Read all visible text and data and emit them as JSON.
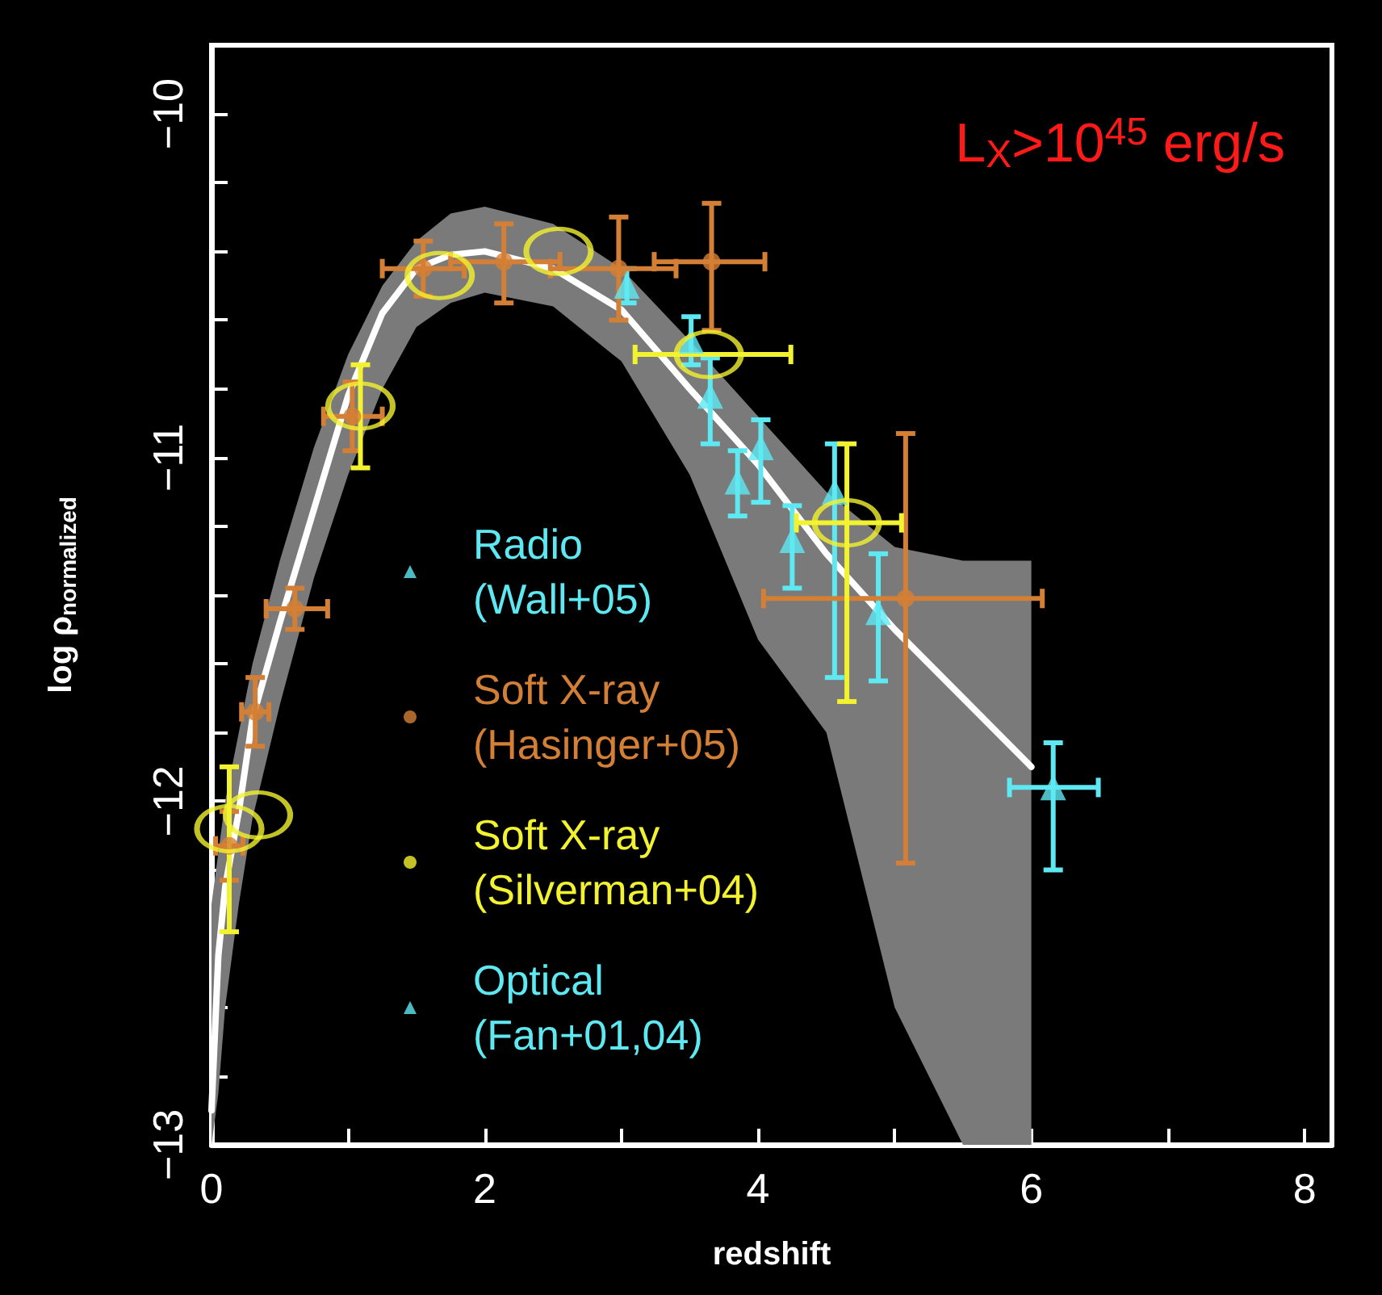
{
  "chart_data": {
    "type": "scatter",
    "ylabel": "log ρ$_{normalized}$",
    "xlabel": "redshift",
    "annotations": [
      "L$_{X}$>10$^{45}$ erg/s"
    ],
    "xlim": [
      0,
      8.2
    ],
    "xticks": [
      0,
      {
        "value": 1,
        "label": null
      },
      2,
      {
        "value": 3,
        "label": null
      },
      4,
      {
        "value": 5,
        "label": null
      },
      6,
      {
        "value": 7,
        "label": null
      },
      8
    ],
    "ylim": [
      -13,
      -9.8
    ],
    "yticks": [
      -13,
      {
        "value": -12.8,
        "label": null
      },
      {
        "value": -12.6,
        "label": null
      },
      {
        "value": -12.4,
        "label": null
      },
      {
        "value": -12.2,
        "label": null
      },
      -12,
      {
        "value": -11.8,
        "label": null
      },
      {
        "value": -11.6,
        "label": null
      },
      {
        "value": -11.4,
        "label": null
      },
      {
        "value": -11.2,
        "label": null
      },
      -11,
      {
        "value": -10.8,
        "label": null
      },
      {
        "value": -10.6,
        "label": null
      },
      {
        "value": -10.4,
        "label": null
      },
      {
        "value": -10.2,
        "label": null
      },
      -10
    ],
    "grid": false,
    "legend": "left",
    "series": [
      {
        "type": "line",
        "color": "#ffffff",
        "marker": "none",
        "line_style": "solid",
        "x": [
          0,
          0.05,
          0.1,
          0.2,
          0.3,
          0.5,
          0.75,
          1,
          1.25,
          1.5,
          1.75,
          2,
          2.5,
          3,
          3.5,
          4,
          4.5,
          5,
          5.5,
          6
        ],
        "values": [
          -12.9,
          -12.45,
          -12.25,
          -12.03,
          -11.76,
          -11.48,
          -11.15,
          -10.82,
          -10.58,
          -10.45,
          -10.41,
          -10.4,
          -10.45,
          -10.57,
          -10.8,
          -11.02,
          -11.28,
          -11.5,
          -11.7,
          -11.9
        ],
        "upper": [
          -12.3,
          -12.15,
          -12.0,
          -11.8,
          -11.6,
          -11.3,
          -10.97,
          -10.7,
          -10.5,
          -10.37,
          -10.29,
          -10.27,
          -10.32,
          -10.45,
          -10.66,
          -10.88,
          -11.1,
          -11.26,
          -11.3,
          -11.3
        ],
        "lower": [
          -13,
          -12.85,
          -12.6,
          -12.3,
          -12.05,
          -11.72,
          -11.35,
          -11.05,
          -10.8,
          -10.62,
          -10.55,
          -10.52,
          -10.56,
          -10.72,
          -11.05,
          -11.53,
          -11.8,
          -12.6,
          -13,
          -13
        ]
      },
      {
        "name": "Radio\n(Wall+05)",
        "color": "#5ee8f2",
        "marker": "triangle",
        "x": [
          3.04,
          3.51,
          3.65,
          3.85,
          4.02,
          4.25,
          4.56,
          4.88
        ],
        "values": [
          -10.5,
          -10.66,
          -10.82,
          -11.07,
          -10.97,
          -11.24,
          -11.1,
          -11.45
        ],
        "errors": [
          [
            -10.55,
            -10.45
          ],
          [
            -10.73,
            -10.59
          ],
          [
            -10.96,
            -10.71
          ],
          [
            -11.17,
            -10.98
          ],
          [
            -11.13,
            -10.89
          ],
          [
            -11.38,
            -11.14
          ],
          [
            -11.64,
            -10.96
          ],
          [
            -11.65,
            -11.28
          ]
        ]
      },
      {
        "name": "Soft X-ray\n(Hasinger+05)",
        "color": "#d47f36",
        "marker": "circle",
        "x": [
          0.13,
          0.32,
          0.61,
          1.03,
          1.55,
          2.14,
          2.98,
          3.66,
          5.08
        ],
        "values": [
          -12.13,
          -11.74,
          -11.44,
          -10.88,
          -10.45,
          -10.43,
          -10.45,
          -10.43,
          -11.41
        ],
        "errors": [
          [
            -12.23,
            -12.03
          ],
          [
            -11.84,
            -11.64
          ],
          [
            -11.5,
            -11.38
          ],
          [
            -10.98,
            -10.78
          ],
          [
            -10.53,
            -10.37
          ],
          [
            -10.55,
            -10.32
          ],
          [
            -10.6,
            -10.3
          ],
          [
            -10.63,
            -10.26
          ],
          [
            -12.18,
            -10.93
          ]
        ],
        "xerrors": [
          [
            0.03,
            0.23
          ],
          [
            0.22,
            0.42
          ],
          [
            0.4,
            0.85
          ],
          [
            0.82,
            1.25
          ],
          [
            1.25,
            1.85
          ],
          [
            1.75,
            2.55
          ],
          [
            2.48,
            3.4
          ],
          [
            3.24,
            4.05
          ],
          [
            4.04,
            6.08
          ]
        ]
      },
      {
        "name": "Soft X-ray\n(Silverman+04)",
        "color": "#f2f230",
        "marker": "circle",
        "x": [
          0.13,
          0.34,
          1.09,
          1.67,
          2.54,
          3.64,
          4.65
        ],
        "values": [
          -12.08,
          -12.04,
          -10.85,
          -10.47,
          -10.4,
          -10.7,
          -11.19
        ],
        "errors": [
          [
            -12.38,
            -11.9
          ],
          null,
          [
            -11.03,
            -10.73
          ],
          null,
          null,
          null,
          [
            -11.71,
            -10.96
          ]
        ],
        "xerrors": [
          null,
          null,
          null,
          null,
          null,
          [
            3.1,
            4.24
          ],
          [
            4.28,
            5.05
          ]
        ]
      },
      {
        "name": "Optical\n(Fan+01,04)",
        "color": "#5ee8f2",
        "marker": "triangle",
        "x": [
          6.16
        ],
        "values": [
          -11.96
        ],
        "errors": [
          [
            -12.2,
            -11.83
          ]
        ],
        "xerrors": [
          [
            5.84,
            6.49
          ]
        ]
      }
    ]
  }
}
